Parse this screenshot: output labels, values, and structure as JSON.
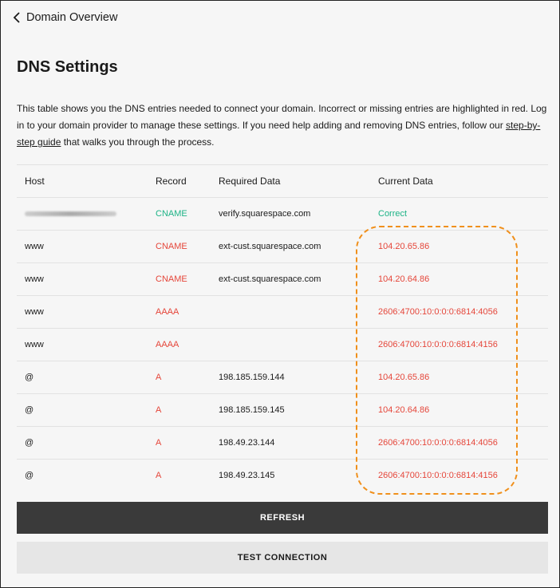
{
  "nav": {
    "back_label": "Domain Overview"
  },
  "page": {
    "title": "DNS Settings",
    "description_pre": "This table shows you the DNS entries needed to connect your domain. Incorrect or missing entries are highlighted in red. Log in to your domain provider to manage these settings. If you need help adding and removing DNS entries, follow our ",
    "link_label": "step-by-step guide",
    "description_post": " that walks you through the process."
  },
  "table": {
    "headers": [
      "Host",
      "Record",
      "Required Data",
      "Current Data"
    ],
    "rows": [
      {
        "host": "",
        "host_blurred": true,
        "record": "CNAME",
        "required": "verify.squarespace.com",
        "current": "Correct",
        "status": "ok"
      },
      {
        "host": "www",
        "record": "CNAME",
        "required": "ext-cust.squarespace.com",
        "current": "104.20.65.86",
        "status": "bad"
      },
      {
        "host": "www",
        "record": "CNAME",
        "required": "ext-cust.squarespace.com",
        "current": "104.20.64.86",
        "status": "bad"
      },
      {
        "host": "www",
        "record": "AAAA",
        "required": "",
        "current": "2606:4700:10:0:0:0:6814:4056",
        "status": "bad"
      },
      {
        "host": "www",
        "record": "AAAA",
        "required": "",
        "current": "2606:4700:10:0:0:0:6814:4156",
        "status": "bad"
      },
      {
        "host": "@",
        "record": "A",
        "required": "198.185.159.144",
        "current": "104.20.65.86",
        "status": "bad"
      },
      {
        "host": "@",
        "record": "A",
        "required": "198.185.159.145",
        "current": "104.20.64.86",
        "status": "bad"
      },
      {
        "host": "@",
        "record": "A",
        "required": "198.49.23.144",
        "current": "2606:4700:10:0:0:0:6814:4056",
        "status": "bad"
      },
      {
        "host": "@",
        "record": "A",
        "required": "198.49.23.145",
        "current": "2606:4700:10:0:0:0:6814:4156",
        "status": "bad"
      }
    ]
  },
  "buttons": {
    "refresh": "REFRESH",
    "test": "TEST CONNECTION"
  },
  "colors": {
    "ok": "#1db386",
    "error": "#e5463a",
    "highlight": "#f0901c"
  }
}
